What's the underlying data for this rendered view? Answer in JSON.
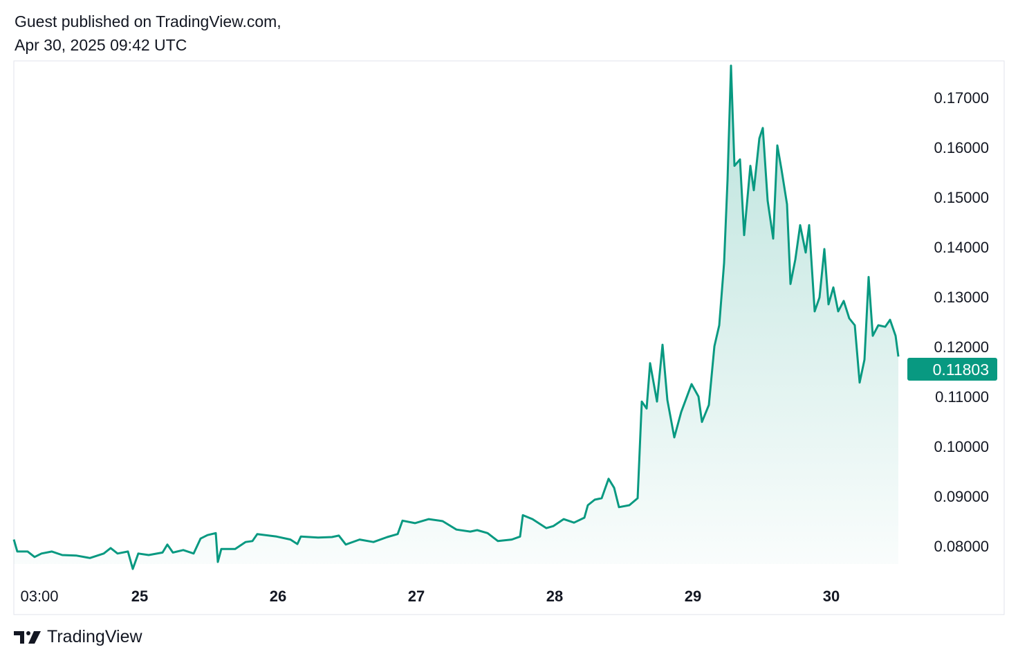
{
  "header": {
    "line1": "Guest published on TradingView.com,",
    "line2": "Apr 30, 2025 09:42 UTC"
  },
  "brand": {
    "logo_text": "TradingView"
  },
  "colors": {
    "line": "#089981",
    "fill": "#089981",
    "label_bg": "#089981"
  },
  "chart_data": {
    "type": "area",
    "x_unit": "hours since Apr 24 00:00 UTC",
    "ylim": [
      0.075,
      0.178
    ],
    "y_ticks": [
      "0.17000",
      "0.16000",
      "0.15000",
      "0.14000",
      "0.13000",
      "0.12000",
      "0.11000",
      "0.10000",
      "0.09000",
      "0.08000"
    ],
    "y_tick_values": [
      0.17,
      0.16,
      0.15,
      0.14,
      0.13,
      0.12,
      0.11,
      0.1,
      0.09,
      0.08
    ],
    "x_ticks": [
      {
        "label": "03:00",
        "hour": 3,
        "bold": false
      },
      {
        "label": "25",
        "hour": 24,
        "bold": true
      },
      {
        "label": "26",
        "hour": 48,
        "bold": true
      },
      {
        "label": "27",
        "hour": 72,
        "bold": true
      },
      {
        "label": "28",
        "hour": 96,
        "bold": true
      },
      {
        "label": "29",
        "hour": 120,
        "bold": true
      },
      {
        "label": "30",
        "hour": 144,
        "bold": true
      }
    ],
    "last_price": "0.11803",
    "last_value": 0.11803,
    "grid": false,
    "points": [
      [
        2.16,
        0.0813
      ],
      [
        2.76,
        0.0789
      ],
      [
        4.56,
        0.0789
      ],
      [
        5.76,
        0.0778
      ],
      [
        6.96,
        0.0785
      ],
      [
        8.76,
        0.0789
      ],
      [
        10.56,
        0.0782
      ],
      [
        12.96,
        0.0781
      ],
      [
        15.36,
        0.0776
      ],
      [
        17.76,
        0.0785
      ],
      [
        18.96,
        0.0796
      ],
      [
        20.16,
        0.0785
      ],
      [
        21.96,
        0.0789
      ],
      [
        22.8,
        0.0754
      ],
      [
        23.76,
        0.0785
      ],
      [
        25.56,
        0.0782
      ],
      [
        27.96,
        0.0787
      ],
      [
        28.8,
        0.0803
      ],
      [
        29.76,
        0.0787
      ],
      [
        31.56,
        0.0792
      ],
      [
        33.36,
        0.0785
      ],
      [
        34.56,
        0.0815
      ],
      [
        35.76,
        0.0822
      ],
      [
        37.2,
        0.0826
      ],
      [
        37.56,
        0.0768
      ],
      [
        38.16,
        0.0794
      ],
      [
        40.56,
        0.0794
      ],
      [
        42.36,
        0.0808
      ],
      [
        43.56,
        0.081
      ],
      [
        44.4,
        0.0824
      ],
      [
        47.76,
        0.0819
      ],
      [
        50.16,
        0.0813
      ],
      [
        51.36,
        0.0804
      ],
      [
        51.96,
        0.0819
      ],
      [
        54.96,
        0.0817
      ],
      [
        57.36,
        0.0818
      ],
      [
        58.56,
        0.0821
      ],
      [
        59.76,
        0.0803
      ],
      [
        62.16,
        0.0813
      ],
      [
        64.56,
        0.0808
      ],
      [
        66.96,
        0.0818
      ],
      [
        68.76,
        0.0824
      ],
      [
        69.6,
        0.0851
      ],
      [
        71.76,
        0.0846
      ],
      [
        74.16,
        0.0854
      ],
      [
        76.56,
        0.085
      ],
      [
        78.96,
        0.0833
      ],
      [
        81.36,
        0.0829
      ],
      [
        82.56,
        0.0832
      ],
      [
        84.36,
        0.0826
      ],
      [
        86.16,
        0.081
      ],
      [
        88.56,
        0.0813
      ],
      [
        90,
        0.0819
      ],
      [
        90.48,
        0.0862
      ],
      [
        92.16,
        0.0854
      ],
      [
        94.56,
        0.0836
      ],
      [
        95.76,
        0.084
      ],
      [
        97.56,
        0.0854
      ],
      [
        99.36,
        0.0847
      ],
      [
        101.16,
        0.0857
      ],
      [
        101.76,
        0.0882
      ],
      [
        102.96,
        0.0893
      ],
      [
        104.16,
        0.0896
      ],
      [
        105.36,
        0.0935
      ],
      [
        106.32,
        0.0917
      ],
      [
        107.16,
        0.0878
      ],
      [
        108.96,
        0.0882
      ],
      [
        110.4,
        0.0896
      ],
      [
        111.12,
        0.109
      ],
      [
        111.96,
        0.1076
      ],
      [
        112.56,
        0.1167
      ],
      [
        113.76,
        0.109
      ],
      [
        114.72,
        0.1204
      ],
      [
        115.56,
        0.1093
      ],
      [
        116.76,
        0.1018
      ],
      [
        117.96,
        0.1069
      ],
      [
        119.76,
        0.1125
      ],
      [
        120.96,
        0.11
      ],
      [
        121.56,
        0.1049
      ],
      [
        122.76,
        0.1083
      ],
      [
        123.72,
        0.1201
      ],
      [
        124.56,
        0.1243
      ],
      [
        125.4,
        0.1368
      ],
      [
        126,
        0.1535
      ],
      [
        126.6,
        0.1764
      ],
      [
        127.2,
        0.1563
      ],
      [
        128.16,
        0.1576
      ],
      [
        128.88,
        0.1424
      ],
      [
        129.96,
        0.1563
      ],
      [
        130.56,
        0.1514
      ],
      [
        131.52,
        0.1618
      ],
      [
        132.12,
        0.1639
      ],
      [
        132.96,
        0.1493
      ],
      [
        133.92,
        0.1417
      ],
      [
        134.64,
        0.1604
      ],
      [
        135.36,
        0.1556
      ],
      [
        136.32,
        0.1486
      ],
      [
        136.92,
        0.1326
      ],
      [
        137.76,
        0.1375
      ],
      [
        138.6,
        0.1444
      ],
      [
        139.56,
        0.1389
      ],
      [
        140.16,
        0.1444
      ],
      [
        141.12,
        0.1271
      ],
      [
        141.96,
        0.1299
      ],
      [
        142.8,
        0.1396
      ],
      [
        143.52,
        0.1285
      ],
      [
        144.36,
        0.1319
      ],
      [
        145.2,
        0.1271
      ],
      [
        146.16,
        0.1292
      ],
      [
        147.12,
        0.1257
      ],
      [
        148.08,
        0.1243
      ],
      [
        148.92,
        0.1128
      ],
      [
        149.76,
        0.1174
      ],
      [
        150.48,
        0.134
      ],
      [
        151.2,
        0.1222
      ],
      [
        152.16,
        0.1243
      ],
      [
        153.36,
        0.124
      ],
      [
        154.2,
        0.1254
      ],
      [
        155.16,
        0.1222
      ],
      [
        155.64,
        0.11803
      ]
    ]
  }
}
